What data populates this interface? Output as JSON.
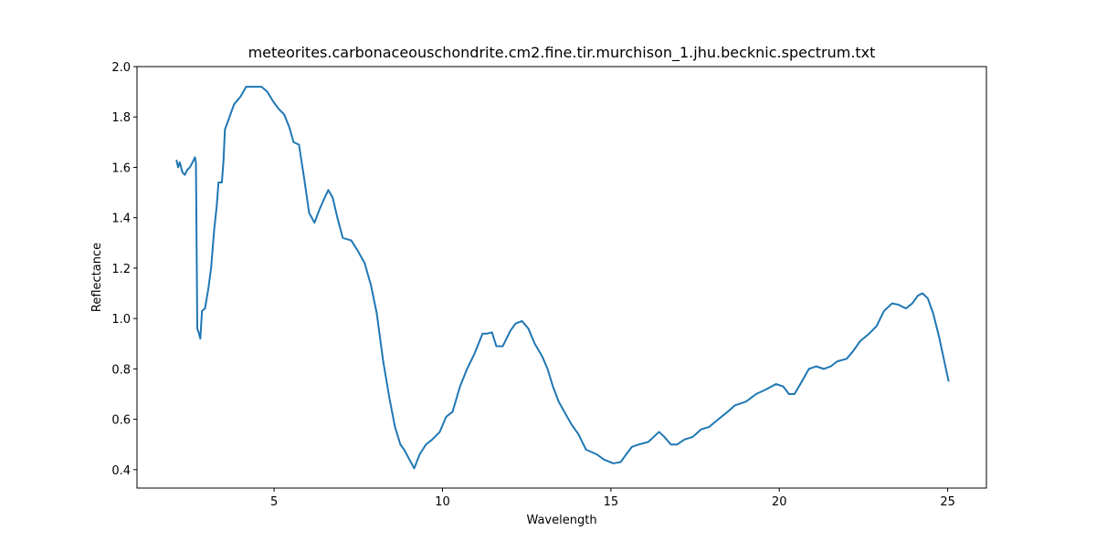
{
  "chart_data": {
    "type": "line",
    "title": "meteorites.carbonaceouschondrite.cm2.fine.tir.murchison_1.jhu.becknic.spectrum.txt",
    "x_label": "Wavelength",
    "y_label": "Reflectance",
    "xlim": [
      0.93,
      26.15
    ],
    "xticks": [
      5,
      10,
      15,
      20,
      25
    ],
    "ylim": [
      0.327,
      2.0
    ],
    "yticks": [
      0.4,
      0.6,
      0.8,
      {
        "value": 1.0,
        "label": "1.0"
      },
      1.2,
      1.4,
      1.6,
      1.8,
      {
        "value": 2.0,
        "label": "2.0"
      }
    ],
    "grid": false,
    "x": [
      2.1,
      2.15,
      2.2,
      2.28,
      2.35,
      2.42,
      2.5,
      2.58,
      2.65,
      2.68,
      2.72,
      2.77,
      2.81,
      2.86,
      2.95,
      3.05,
      3.13,
      3.22,
      3.3,
      3.35,
      3.45,
      3.5,
      3.54,
      3.65,
      3.81,
      4.0,
      4.17,
      4.4,
      4.63,
      4.8,
      4.98,
      5.15,
      5.3,
      5.45,
      5.58,
      5.74,
      5.9,
      6.04,
      6.2,
      6.34,
      6.47,
      6.61,
      6.74,
      6.88,
      7.04,
      7.29,
      7.48,
      7.69,
      7.88,
      8.05,
      8.24,
      8.43,
      8.59,
      8.75,
      8.86,
      9.02,
      9.16,
      9.32,
      9.51,
      9.7,
      9.92,
      10.11,
      10.3,
      10.52,
      10.73,
      10.95,
      11.19,
      11.33,
      11.47,
      11.6,
      11.79,
      12.01,
      12.17,
      12.36,
      12.55,
      12.74,
      12.96,
      13.12,
      13.28,
      13.45,
      13.66,
      13.83,
      14.04,
      14.26,
      14.42,
      14.59,
      14.8,
      15.07,
      15.29,
      15.45,
      15.62,
      15.83,
      16.11,
      16.27,
      16.43,
      16.59,
      16.78,
      16.97,
      17.19,
      17.43,
      17.68,
      17.92,
      18.19,
      18.47,
      18.68,
      19.01,
      19.31,
      19.63,
      19.9,
      20.12,
      20.29,
      20.45,
      20.67,
      20.88,
      21.1,
      21.32,
      21.53,
      21.72,
      22.0,
      22.19,
      22.4,
      22.67,
      22.89,
      23.11,
      23.35,
      23.54,
      23.76,
      23.95,
      24.11,
      24.25,
      24.41,
      24.57,
      24.74,
      24.9,
      25.03
    ],
    "series": [
      {
        "name": "Reflectance",
        "color": "#1f77b4",
        "values": [
          1.63,
          1.6,
          1.62,
          1.58,
          1.57,
          1.59,
          1.6,
          1.62,
          1.64,
          1.62,
          0.96,
          0.94,
          0.92,
          1.03,
          1.04,
          1.12,
          1.2,
          1.35,
          1.45,
          1.54,
          1.54,
          1.63,
          1.75,
          1.79,
          1.85,
          1.88,
          1.92,
          1.92,
          1.92,
          1.9,
          1.86,
          1.83,
          1.81,
          1.76,
          1.7,
          1.69,
          1.55,
          1.42,
          1.38,
          1.43,
          1.47,
          1.51,
          1.48,
          1.4,
          1.32,
          1.31,
          1.27,
          1.22,
          1.13,
          1.02,
          0.83,
          0.68,
          0.57,
          0.5,
          0.48,
          0.44,
          0.405,
          0.46,
          0.5,
          0.52,
          0.55,
          0.61,
          0.63,
          0.73,
          0.8,
          0.86,
          0.94,
          0.94,
          0.945,
          0.89,
          0.89,
          0.95,
          0.98,
          0.99,
          0.96,
          0.9,
          0.85,
          0.8,
          0.73,
          0.67,
          0.62,
          0.58,
          0.54,
          0.48,
          0.47,
          0.46,
          0.44,
          0.425,
          0.43,
          0.46,
          0.49,
          0.5,
          0.51,
          0.53,
          0.55,
          0.53,
          0.5,
          0.5,
          0.52,
          0.53,
          0.56,
          0.57,
          0.6,
          0.63,
          0.655,
          0.67,
          0.7,
          0.72,
          0.74,
          0.73,
          0.7,
          0.7,
          0.75,
          0.8,
          0.81,
          0.8,
          0.81,
          0.83,
          0.84,
          0.87,
          0.91,
          0.94,
          0.97,
          1.03,
          1.06,
          1.055,
          1.04,
          1.06,
          1.09,
          1.1,
          1.08,
          1.02,
          0.93,
          0.83,
          0.75
        ]
      }
    ]
  }
}
